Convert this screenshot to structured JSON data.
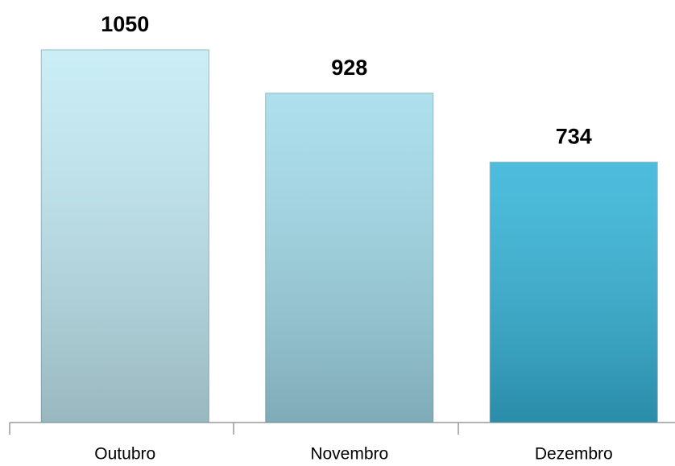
{
  "chart_data": {
    "type": "bar",
    "categories": [
      "Outubro",
      "Novembro",
      "Dezembro"
    ],
    "values": [
      1050,
      928,
      734
    ],
    "colors": [
      "#c3ebf5",
      "#a2dbea",
      "#35b4d8"
    ]
  }
}
